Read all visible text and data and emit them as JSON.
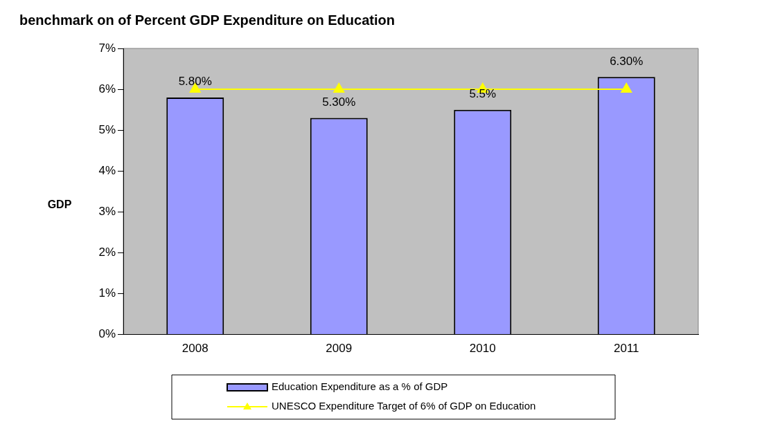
{
  "chart_data": {
    "type": "bar",
    "title": "benchmark on of Percent GDP Expenditure on Education",
    "ylabel": "GDP",
    "categories": [
      "2008",
      "2009",
      "2010",
      "2011"
    ],
    "series": [
      {
        "name": "Education Expenditure as a % of GDP",
        "color": "#9999ff",
        "values": [
          5.8,
          5.3,
          5.5,
          6.3
        ],
        "value_labels": [
          "5.80%",
          "5.30%",
          "5.5%",
          "6.30%"
        ]
      },
      {
        "name": "UNESCO Expenditure Target of 6% of GDP on Education",
        "type": "line",
        "color": "#ffff00",
        "values": [
          6,
          6,
          6,
          6
        ],
        "marker": "triangle"
      }
    ],
    "ylim": [
      0,
      7
    ],
    "yticks": [
      {
        "value": 0,
        "label": "0%"
      },
      {
        "value": 1,
        "label": "1%"
      },
      {
        "value": 2,
        "label": "2%"
      },
      {
        "value": 3,
        "label": "3%"
      },
      {
        "value": 4,
        "label": "4%"
      },
      {
        "value": 5,
        "label": "5%"
      },
      {
        "value": 6,
        "label": "6%"
      },
      {
        "value": 7,
        "label": "7%"
      }
    ],
    "grid": false,
    "legend": "bottom"
  }
}
